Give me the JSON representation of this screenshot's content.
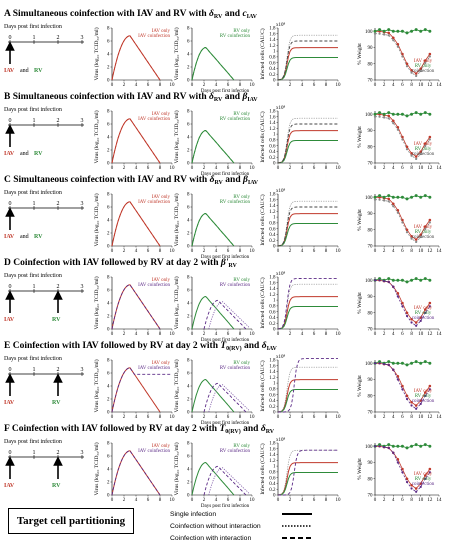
{
  "colors": {
    "iav": "#c0392b",
    "rv": "#2e8b3a",
    "co": "#5b2a86",
    "black": "#000000",
    "gray": "#888888"
  },
  "common": {
    "timeline_caption": "Days post first infection",
    "ticks": [
      "0",
      "1",
      "2",
      "3"
    ],
    "iav": "IAV",
    "rv": "RV",
    "and": "and",
    "x_axis": "Days post first infection",
    "virus_axis": "Virus (log₁₀ TCID₅₀/ml)",
    "cells_axis": "Infected cells (CAU/C)",
    "weight_axis": "% Weight",
    "cells_exponent": "x10⁸",
    "x_ticks_virus": [
      "0",
      "2",
      "4",
      "6",
      "8",
      "10"
    ],
    "y_ticks_virus": [
      "0",
      "2",
      "4",
      "6",
      "8"
    ],
    "y_ticks_cells": [
      "0",
      "0.2",
      "0.4",
      "0.6",
      "0.8",
      "1",
      "1.2",
      "1.4",
      "1.6",
      "1.8"
    ],
    "x_ticks_weight": [
      "0",
      "2",
      "4",
      "6",
      "8",
      "10",
      "12",
      "14"
    ],
    "y_ticks_weight": [
      "70",
      "80",
      "90",
      "100"
    ],
    "leg_iav_only": "IAV only",
    "leg_rv_only": "RV only",
    "leg_iav_coinf": "IAV coinfection",
    "leg_rv_coinf": "RV coinfection",
    "leg_coinf": "coinfection"
  },
  "panels": [
    {
      "letter": "A",
      "title": "Simultaneous coinfection with IAV and RV with δ_RV and c_IAV",
      "title_text": "Simultaneous coinfection with IAV and RV with ",
      "sym1": "δ",
      "sub1": "RV",
      "mid": " and ",
      "sym2": "c",
      "sub2": "IAV",
      "rv_day": 0
    },
    {
      "letter": "B",
      "title": "Simultaneous coinfection with IAV and RV with δ_RV and β_IAV",
      "title_text": "Simultaneous coinfection with IAV and RV with ",
      "sym1": "δ",
      "sub1": "RV",
      "mid": " and ",
      "sym2": "β",
      "sub2": "IAV",
      "rv_day": 0
    },
    {
      "letter": "C",
      "title": "Simultaneous coinfection with IAV and RV with δ_RV and β_IAV",
      "title_text": "Simultaneous coinfection with IAV and RV with ",
      "sym1": "δ",
      "sub1": "RV",
      "mid": " and ",
      "sym2": "β",
      "sub2": "IAV",
      "rv_day": 0
    },
    {
      "letter": "D",
      "title": "Coinfection with IAV followed by RV at day 2 with β'_RV",
      "title_text": "Coinfection with IAV followed by RV at day 2 with ",
      "sym1": "β'",
      "sub1": "RV",
      "mid": "",
      "sym2": "",
      "sub2": "",
      "rv_day": 2
    },
    {
      "letter": "E",
      "title": "Coinfection with IAV followed by RV at day 2 with T_0(RV) and δ_IAV",
      "title_text": "Coinfection with IAV followed by RV at day 2 with ",
      "sym1": "T",
      "sub1": "0(RV)",
      "mid": " and ",
      "sym2": "δ",
      "sub2": "IAV",
      "rv_day": 2
    },
    {
      "letter": "F",
      "title": "Coinfection with IAV followed by RV at day 2 with T_0(RV) and δ_RV",
      "title_text": "Coinfection with IAV followed by RV at day 2 with ",
      "sym1": "T",
      "sub1": "0(RV)",
      "mid": " and ",
      "sym2": "δ",
      "sub2": "RV",
      "rv_day": 2
    }
  ],
  "footer": {
    "box_label": "Target cell partitioning",
    "legend": [
      {
        "label": "Single infection",
        "style": "solid"
      },
      {
        "label": "Coinfection without interaction",
        "style": "dotted"
      },
      {
        "label": "Coinfection with interaction",
        "style": "dashed"
      }
    ]
  },
  "chart_data": [
    {
      "type": "line",
      "panel": "all",
      "xlabel": "Days post first infection",
      "ylabel": "Virus (log10 TCID50/ml)",
      "xlim": [
        0,
        10
      ],
      "ylim": [
        0,
        8
      ],
      "series": [
        {
          "name": "IAV only",
          "x": [
            0,
            1,
            2,
            3,
            4,
            5,
            6,
            7,
            8
          ],
          "y": [
            0,
            3.5,
            5.8,
            6.8,
            6.2,
            4.6,
            3.0,
            1.4,
            0
          ]
        },
        {
          "name": "RV only",
          "x": [
            0,
            1,
            2,
            3,
            4,
            5,
            6,
            7
          ],
          "y": [
            0,
            3.2,
            5.0,
            4.8,
            3.8,
            2.4,
            1.2,
            0
          ]
        }
      ]
    },
    {
      "type": "line",
      "panel": "all",
      "xlabel": "Days post first infection",
      "ylabel": "Infected cells (CAU/C)",
      "xlim": [
        0,
        10
      ],
      "ylim": [
        0,
        1.8
      ],
      "series": [
        {
          "name": "IAV",
          "x": [
            0,
            1,
            2,
            3,
            4,
            6,
            10
          ],
          "y": [
            0,
            0.2,
            0.9,
            1.1,
            1.12,
            1.12,
            1.12
          ]
        },
        {
          "name": "RV",
          "x": [
            0,
            1,
            2,
            3,
            4,
            6,
            10
          ],
          "y": [
            0,
            0.1,
            0.6,
            0.75,
            0.78,
            0.78,
            0.78
          ]
        }
      ]
    },
    {
      "type": "scatter",
      "panel": "all",
      "xlabel": "Days post first infection",
      "ylabel": "% Weight",
      "xlim": [
        0,
        14
      ],
      "ylim": [
        70,
        102
      ],
      "series": [
        {
          "name": "IAV only",
          "x": [
            0,
            1,
            2,
            3,
            4,
            5,
            6,
            7,
            8,
            9,
            10,
            11,
            12
          ],
          "y": [
            100,
            100,
            99.5,
            99,
            96,
            92,
            86,
            80,
            76,
            74,
            77,
            82,
            86
          ]
        },
        {
          "name": "RV only",
          "x": [
            0,
            1,
            2,
            3,
            4,
            5,
            6,
            7,
            8,
            9,
            10,
            11,
            12
          ],
          "y": [
            100,
            101,
            100,
            101,
            100,
            100,
            100,
            99,
            100,
            101,
            100,
            101,
            100
          ]
        }
      ]
    }
  ]
}
